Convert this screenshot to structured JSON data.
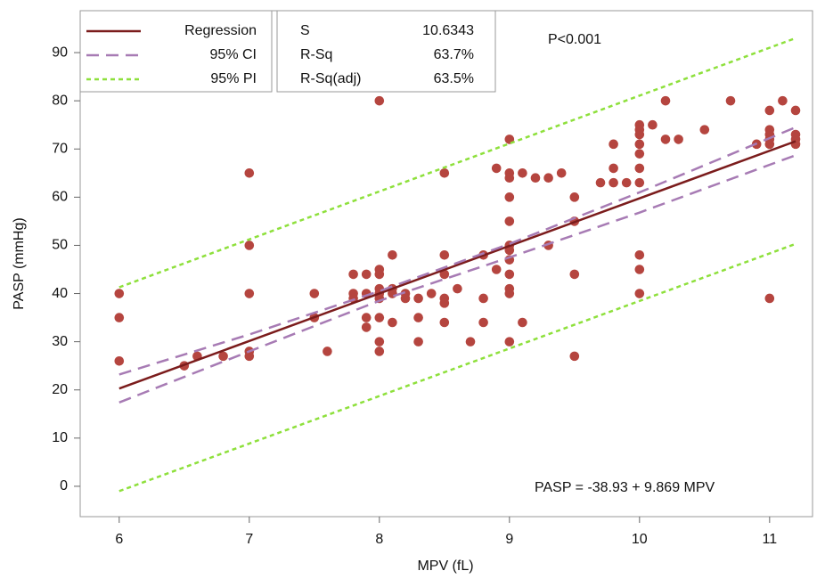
{
  "chart_data": {
    "type": "scatter",
    "x_label": "MPV (fL)",
    "y_label": "PASP (mmHg)",
    "xlim": [
      5.7,
      11.33
    ],
    "ylim": [
      -6.3,
      98.7
    ],
    "xticks": [
      6,
      7,
      8,
      9,
      10,
      11
    ],
    "yticks": [
      0,
      10,
      20,
      30,
      40,
      50,
      60,
      70,
      80,
      90
    ],
    "grid": false,
    "points": {
      "color": "#b5453f",
      "x": [
        6,
        6,
        6,
        6.5,
        6.6,
        6.8,
        7,
        7,
        7,
        7,
        7,
        7.5,
        7.5,
        7.6,
        7.8,
        7.8,
        7.8,
        7.9,
        7.9,
        7.9,
        7.9,
        8,
        8,
        8,
        8,
        8,
        8,
        8,
        8,
        8,
        8.1,
        8.1,
        8.1,
        8.1,
        8.2,
        8.2,
        8.3,
        8.3,
        8.3,
        8.4,
        8.5,
        8.5,
        8.5,
        8.5,
        8.5,
        8.5,
        8.6,
        8.7,
        8.8,
        8.8,
        8.8,
        8.9,
        8.9,
        9,
        9,
        9,
        9,
        9,
        9,
        9,
        9,
        9,
        9,
        9,
        9,
        9.1,
        9.1,
        9.2,
        9.3,
        9.3,
        9.4,
        9.5,
        9.5,
        9.5,
        9.5,
        9.7,
        9.8,
        9.8,
        9.8,
        9.9,
        10,
        10,
        10,
        10,
        10,
        10,
        10,
        10,
        10,
        10,
        10.1,
        10.2,
        10.2,
        10.3,
        10.5,
        10.7,
        10.9,
        11,
        11,
        11,
        11,
        11,
        11,
        11.1,
        11.2,
        11.2,
        11.2,
        11.2
      ],
      "y": [
        40,
        35,
        26,
        25,
        27,
        27,
        65,
        50,
        40,
        28,
        27,
        40,
        35,
        28,
        44,
        40,
        39,
        44,
        40,
        35,
        33,
        80,
        45,
        44,
        41,
        40,
        39,
        35,
        30,
        28,
        48,
        41,
        40,
        34,
        40,
        39,
        39,
        35,
        30,
        40,
        65,
        48,
        44,
        39,
        38,
        34,
        41,
        30,
        48,
        39,
        34,
        66,
        45,
        72,
        65,
        64,
        60,
        55,
        50,
        49,
        47,
        44,
        41,
        40,
        30,
        65,
        34,
        64,
        64,
        50,
        65,
        60,
        55,
        44,
        27,
        63,
        71,
        66,
        63,
        63,
        75,
        74,
        73,
        71,
        69,
        66,
        63,
        48,
        45,
        40,
        75,
        80,
        72,
        72,
        74,
        80,
        71,
        78,
        74,
        73,
        72,
        71,
        39,
        80,
        78,
        73,
        72,
        71
      ]
    },
    "series": [
      {
        "name": "Regression",
        "color": "#7b1c1c",
        "dash": "none",
        "x": [
          6,
          11.2
        ],
        "values": [
          20.28,
          71.6
        ]
      },
      {
        "name": "95% CI",
        "color": "#a77bb4",
        "dash": "14 8",
        "x": [
          6,
          7,
          8,
          9,
          10,
          11.2
        ],
        "values": [
          23.2,
          31.5,
          40.5,
          50.3,
          61,
          74.5
        ]
      },
      {
        "name": null,
        "color": "#a77bb4",
        "dash": "14 8",
        "x": [
          6,
          7,
          8,
          9,
          10,
          11.2
        ],
        "values": [
          17.4,
          28,
          38.5,
          47.5,
          56.8,
          68.7
        ]
      },
      {
        "name": "95% PI",
        "color": "#8ee03c",
        "dash": "5 4",
        "x": [
          6,
          11.2
        ],
        "values": [
          41.3,
          93
        ]
      },
      {
        "name": null,
        "color": "#8ee03c",
        "dash": "5 4",
        "x": [
          6,
          11.2
        ],
        "values": [
          -1,
          50.3
        ]
      }
    ],
    "stats": [
      [
        "S",
        "10.6343"
      ],
      [
        "R-Sq",
        "63.7%"
      ],
      [
        "R-Sq(adj)",
        "63.5%"
      ]
    ],
    "annotations": [
      "P<0.001",
      "PASP = -38.93 + 9.869 MPV"
    ]
  }
}
